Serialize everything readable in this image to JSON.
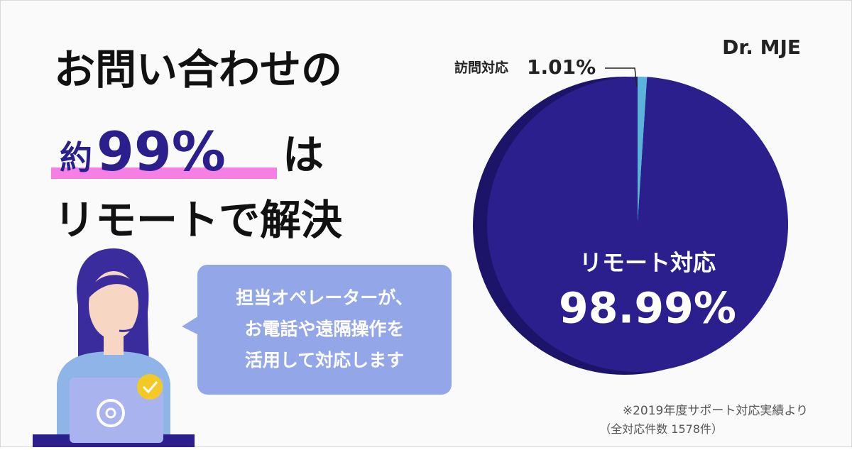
{
  "headline": {
    "line1": "お問い合わせの",
    "line2": [
      "約",
      "99%",
      "は"
    ],
    "line3": "リモートで解決"
  },
  "bubble": [
    "担当オペレーターが、",
    "お電話や遠隔操作を",
    "活用して対応します"
  ],
  "brand": "Dr. MJE",
  "footnote": [
    "※2019年度サポート対応実績より",
    "（全対応件数 1578件）"
  ],
  "chart_data": {
    "type": "pie",
    "categories": [
      "訪問対応",
      "リモート対応"
    ],
    "values": [
      1.01,
      98.99
    ],
    "value_labels": [
      "1.01%",
      "98.99%"
    ],
    "colors": [
      "#5cb3d9",
      "#2a1f8c"
    ]
  }
}
